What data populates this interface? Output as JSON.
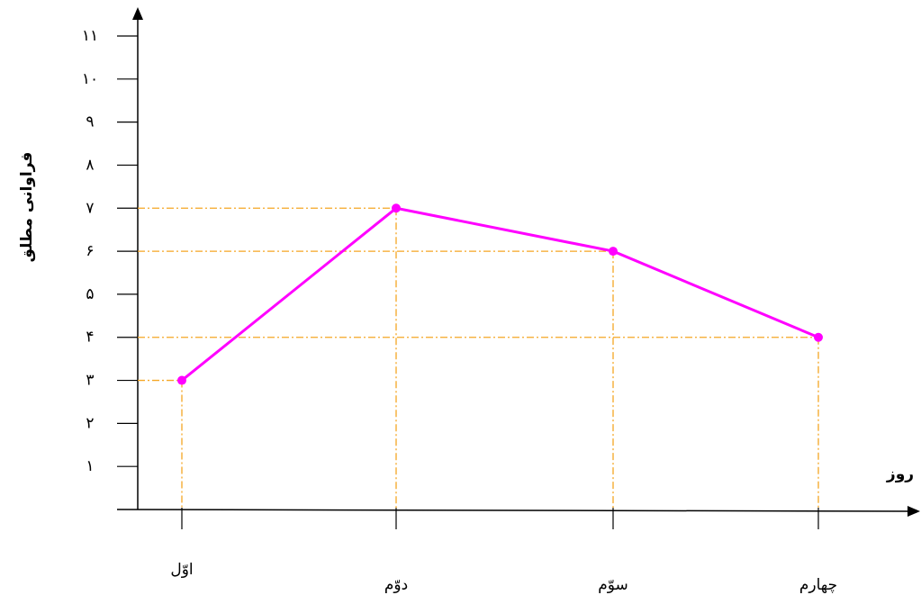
{
  "chart_data": {
    "type": "line",
    "x_label": "روز",
    "y_label": "فراوانی مطلق",
    "categories": [
      "اوّل",
      "دوّم",
      "سوّم",
      "چهارم"
    ],
    "values": [
      3,
      7,
      6,
      4
    ],
    "color": "#ff00ff",
    "guide_color": "#f5a623",
    "ylim": [
      0,
      11
    ],
    "yticks": [
      {
        "value": 1,
        "label": "۱"
      },
      {
        "value": 2,
        "label": "۲"
      },
      {
        "value": 3,
        "label": "۳"
      },
      {
        "value": 4,
        "label": "۴"
      },
      {
        "value": 5,
        "label": "۵"
      },
      {
        "value": 6,
        "label": "۶"
      },
      {
        "value": 7,
        "label": "۷"
      },
      {
        "value": 8,
        "label": "۸"
      },
      {
        "value": 9,
        "label": "۹"
      },
      {
        "value": 10,
        "label": "۱۰"
      },
      {
        "value": 11,
        "label": "۱۱"
      }
    ],
    "grid": false
  }
}
